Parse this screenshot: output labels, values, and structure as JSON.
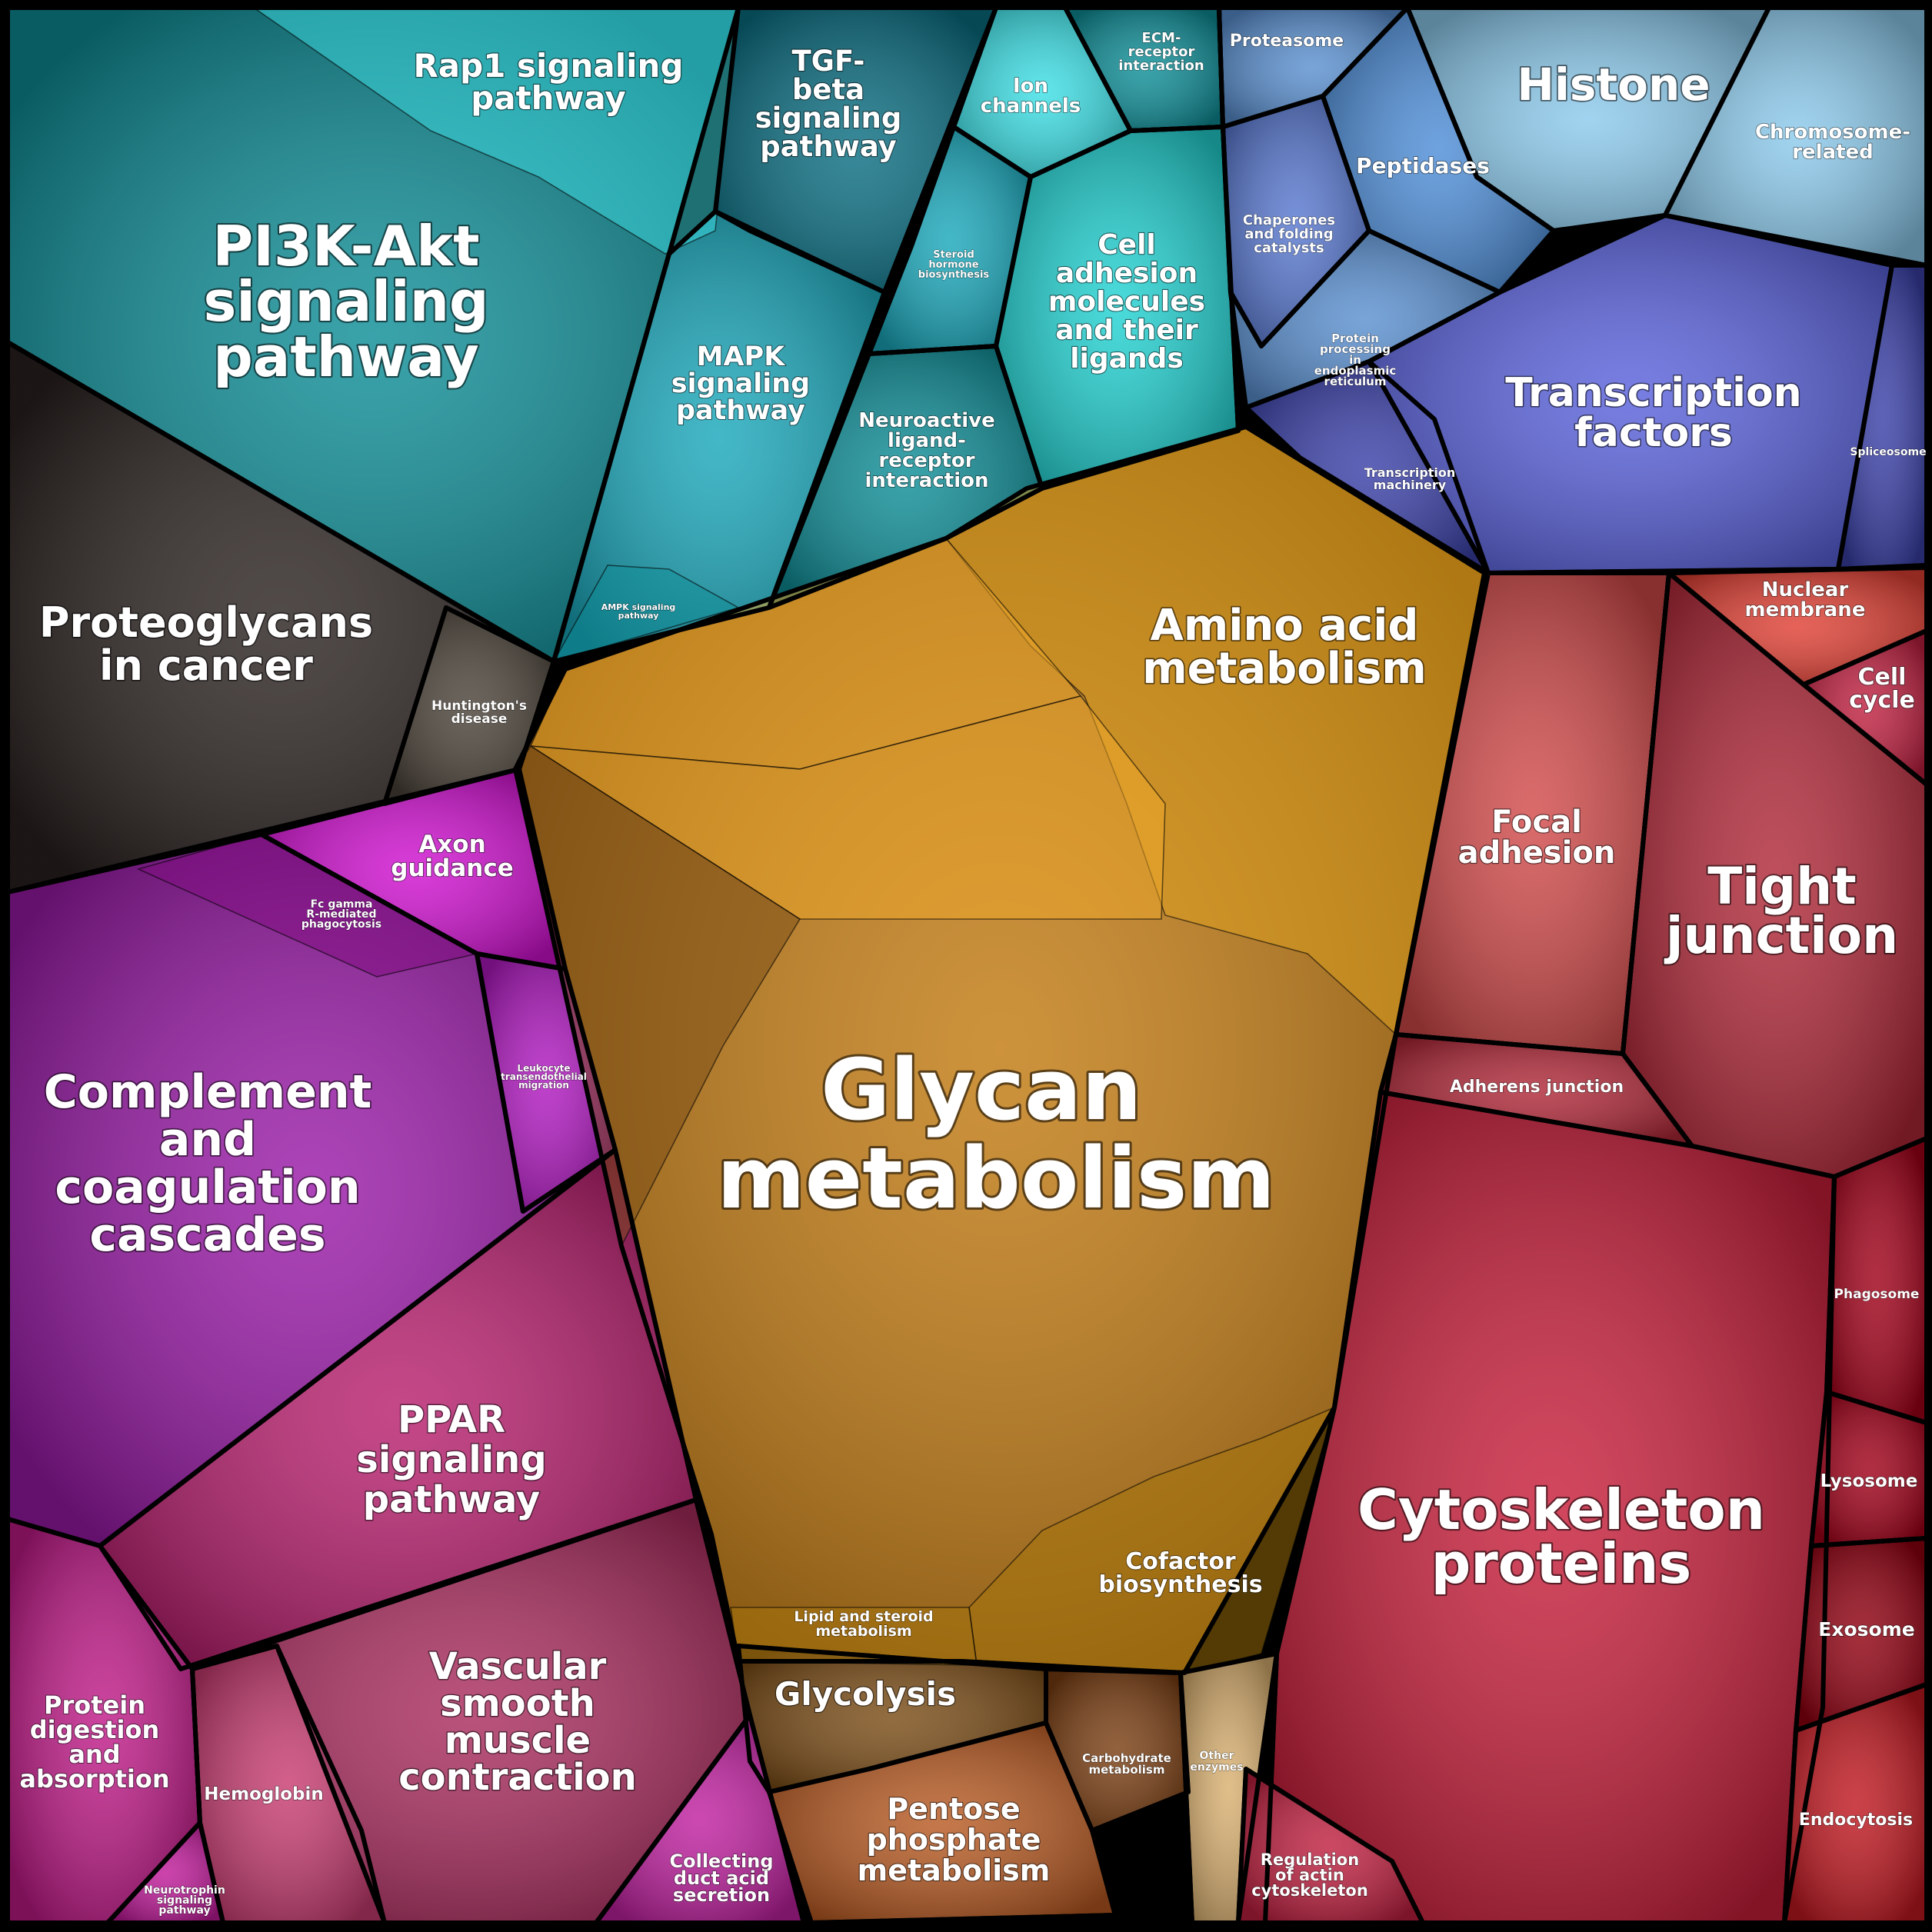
{
  "cells": {
    "glycan": "Glycan metabolism",
    "amino": "Amino acid metabolism",
    "cofactor": "Cofactor biosynthesis",
    "lipid": "Lipid and steroid metabolism",
    "glycolysis": "Glycolysis",
    "pentose": "Pentose phosphate metabolism",
    "carbohydrate": "Carbohydrate metabolism",
    "other_enzymes": "Other enzymes",
    "pi3k": "PI3K-Akt signaling pathway",
    "rap1": "Rap1 signaling pathway",
    "tgf": "TGF-beta signaling pathway",
    "mapk": "MAPK signaling pathway",
    "ampk": "AMPK signaling pathway",
    "ion": "Ion channels",
    "ecm": "ECM-receptor interaction",
    "steroid_hormone": "Steroid hormone biosynthesis",
    "cell_adhesion": "Cell adhesion molecules and their ligands",
    "neuroactive": "Neuroactive ligand-receptor interaction",
    "proteoglycans": "Proteoglycans in cancer",
    "huntington": "Huntington's disease",
    "proteasome": "Proteasome",
    "histone": "Histone",
    "chromosome": "Chromosome-related",
    "peptidases": "Peptidases",
    "chaperones": "Chaperones and folding catalysts",
    "protein_er": "Protein processing in endoplasmic reticulum",
    "transcription_machinery": "Transcription machinery",
    "transcription_factors": "Transcription factors",
    "spliceosome": "Spliceosome",
    "nuclear_membrane": "Nuclear membrane",
    "cell_cycle": "Cell cycle",
    "focal_adhesion": "Focal adhesion",
    "tight_junction": "Tight junction",
    "adherens": "Adherens junction",
    "cytoskeleton": "Cytoskeleton proteins",
    "phagosome": "Phagosome",
    "lysosome": "Lysosome",
    "exosome": "Exosome",
    "endocytosis": "Endocytosis",
    "regulation_actin": "Regulation of actin cytoskeleton",
    "axon": "Axon guidance",
    "fc_gamma": "Fc gamma R-mediated phagocytosis",
    "leukocyte": "Leukocyte transendothelial migration",
    "complement": "Complement and coagulation cascades",
    "ppar": "PPAR signaling pathway",
    "protein_digestion": "Protein digestion and absorption",
    "hemoglobin": "Hemoglobin",
    "vascular": "Vascular smooth muscle contraction",
    "collecting": "Collecting duct acid secretion",
    "neurotrophin": "Neurotrophin signaling pathway"
  },
  "colors": {
    "metabolism": "#c27a10",
    "metabolism_light": "#f2aa2a",
    "amino": "#e0a21e",
    "cofactor": "#a8750a",
    "glycolysis": "#7a4c16",
    "pentose": "#b85a22",
    "carbohydrate": "#7a3e12",
    "other_enzymes": "#d9b070",
    "signaling": "#0e8e97",
    "signaling_light": "#3de0e6",
    "tgf": "#0a6e82",
    "mapk": "#1aa8bb",
    "cell_adhesion": "#22d2d2",
    "proteoglycans": "#2a2220",
    "huntington": "#4a4238",
    "genetic_info": "#5a90d0",
    "histone": "#8ccaec",
    "peptidases": "#4e8ed8",
    "chaperones": "#5878d0",
    "transcription": "#3a40a8",
    "transcription_light": "#5a62dc",
    "cellular": "#c02040",
    "tight": "#b02838",
    "focal": "#d24a4a",
    "nuclear": "#e04034",
    "phago": "#a00018",
    "exosome": "#900010",
    "endocytosis": "#c01820",
    "cytoskeleton": "#c81e3a",
    "immune": "#8a1098",
    "axon": "#d010d0",
    "fc": "#800a80",
    "leukocyte": "#b018c0",
    "complement": "#9a1aa8",
    "ppar": "#b81f6e",
    "ppar_light": "#e03090",
    "protein_digestion": "#c01a88",
    "hemoglobin": "#c83c70",
    "vascular": "#aa2c5e",
    "collecting": "#c020a0",
    "neurotrophin": "#c01a9a"
  }
}
